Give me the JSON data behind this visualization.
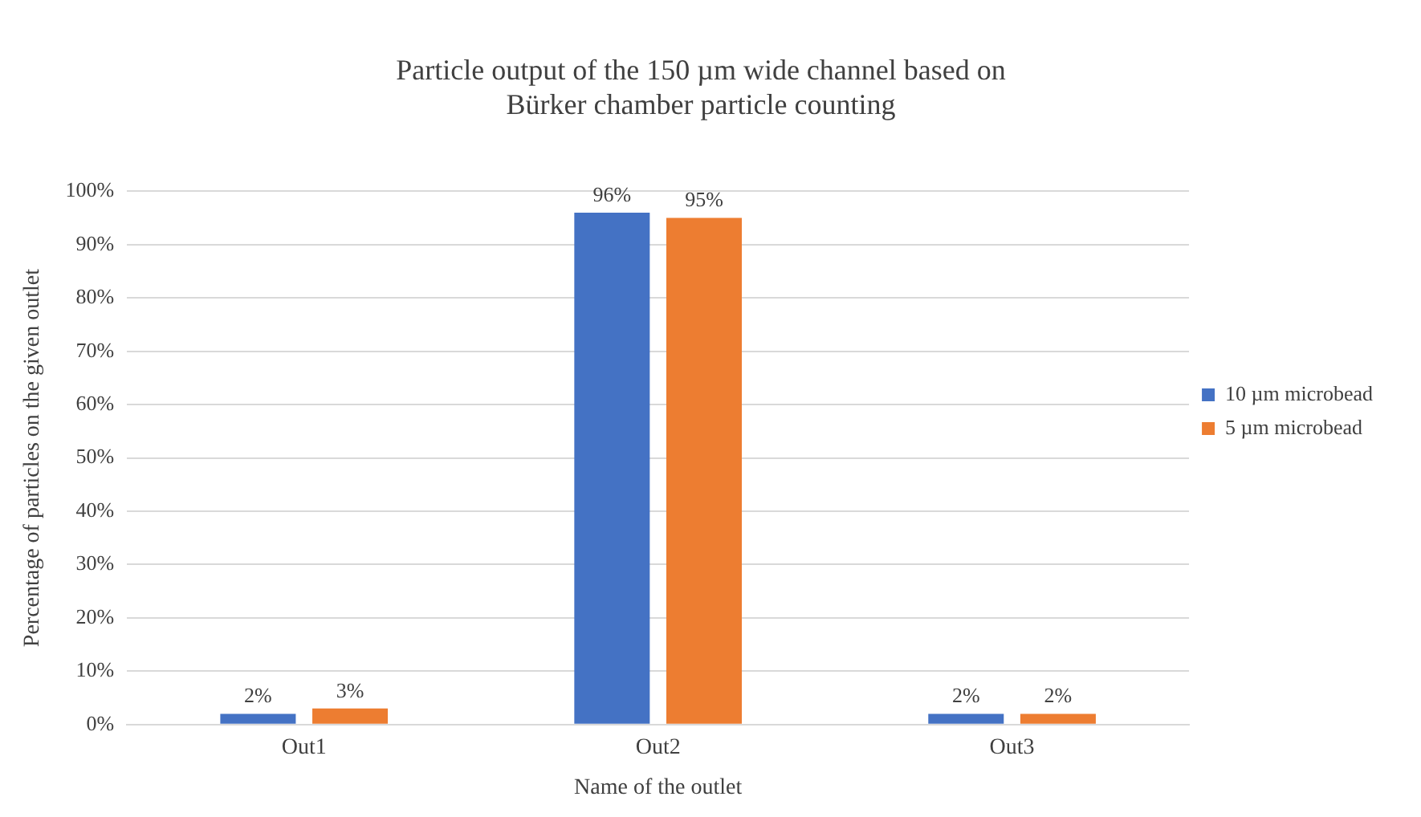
{
  "chart_data": {
    "type": "bar",
    "title": "Particle output of the 150 µm wide channel based on Bürker chamber particle counting",
    "xlabel": "Name of the outlet",
    "ylabel": "Percentage of particles on the given outlet",
    "categories": [
      "Out1",
      "Out2",
      "Out3"
    ],
    "series": [
      {
        "name": "10 µm microbead",
        "color": "#4472c4",
        "values": [
          2,
          96,
          2
        ],
        "value_labels": [
          "2%",
          "96%",
          "2%"
        ]
      },
      {
        "name": "5 µm microbead",
        "color": "#ed7d31",
        "values": [
          3,
          95,
          2
        ],
        "value_labels": [
          "3%",
          "95%",
          "2%"
        ]
      }
    ],
    "ylim": [
      0,
      100
    ],
    "yticks": [
      {
        "value": 0,
        "label": "0%"
      },
      {
        "value": 10,
        "label": "10%"
      },
      {
        "value": 20,
        "label": "20%"
      },
      {
        "value": 30,
        "label": "30%"
      },
      {
        "value": 40,
        "label": "40%"
      },
      {
        "value": 50,
        "label": "50%"
      },
      {
        "value": 60,
        "label": "60%"
      },
      {
        "value": 70,
        "label": "70%"
      },
      {
        "value": 80,
        "label": "80%"
      },
      {
        "value": 90,
        "label": "90%"
      },
      {
        "value": 100,
        "label": "100%"
      }
    ],
    "grid": "y",
    "legend": "right"
  }
}
